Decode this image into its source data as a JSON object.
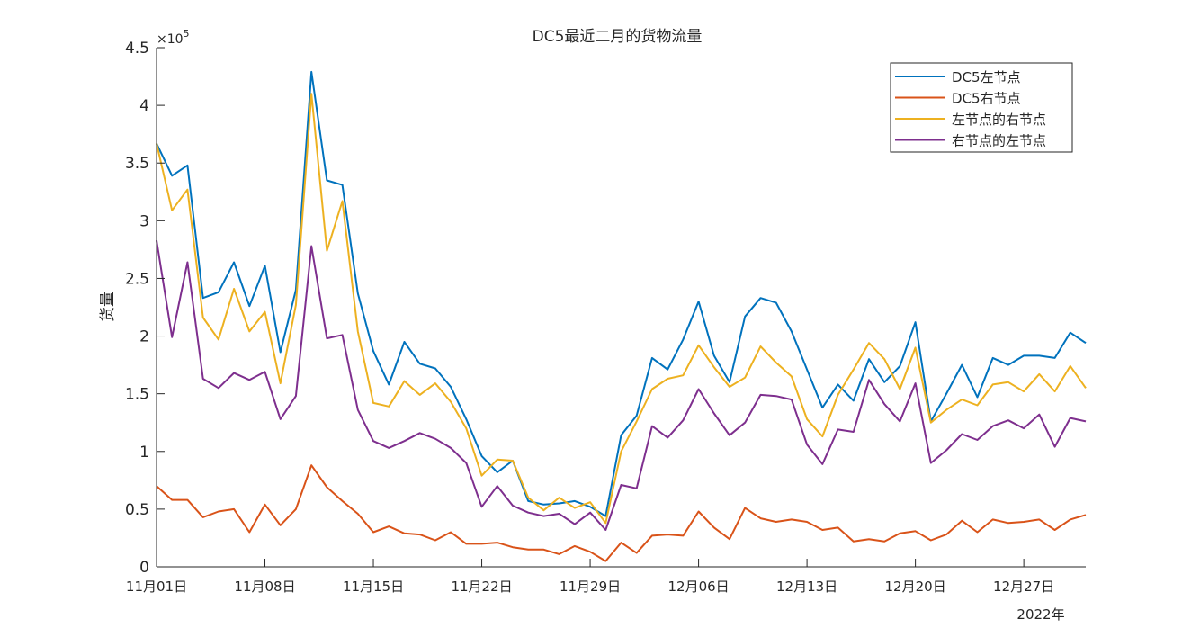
{
  "chart_data": {
    "type": "line",
    "title": "DC5最近二月的货物流量",
    "ylabel": "货量",
    "xlabel": "",
    "y_exponent_label": "×10",
    "y_exponent_power": "5",
    "x_secondary_label": "2022年",
    "ylim": [
      0,
      450000
    ],
    "yticks": [
      0,
      50000,
      100000,
      150000,
      200000,
      250000,
      300000,
      350000,
      400000,
      450000
    ],
    "ytick_labels": [
      "0",
      "0.5",
      "1",
      "1.5",
      "2",
      "2.5",
      "3",
      "3.5",
      "4",
      "4.5"
    ],
    "xlim": [
      "2022-11-01",
      "2022-12-31"
    ],
    "xticks": [
      "2022-11-01",
      "2022-11-08",
      "2022-11-15",
      "2022-11-22",
      "2022-11-29",
      "2022-12-06",
      "2022-12-13",
      "2022-12-20",
      "2022-12-27"
    ],
    "xtick_labels": [
      "11月01日",
      "11月08日",
      "11月15日",
      "11月22日",
      "11月29日",
      "12月06日",
      "12月13日",
      "12月20日",
      "12月27日"
    ],
    "x": [
      "2022-11-01",
      "2022-11-02",
      "2022-11-03",
      "2022-11-04",
      "2022-11-05",
      "2022-11-06",
      "2022-11-07",
      "2022-11-08",
      "2022-11-09",
      "2022-11-10",
      "2022-11-11",
      "2022-11-12",
      "2022-11-13",
      "2022-11-14",
      "2022-11-15",
      "2022-11-16",
      "2022-11-17",
      "2022-11-18",
      "2022-11-19",
      "2022-11-20",
      "2022-11-21",
      "2022-11-22",
      "2022-11-23",
      "2022-11-24",
      "2022-11-25",
      "2022-11-26",
      "2022-11-27",
      "2022-11-28",
      "2022-11-29",
      "2022-11-30",
      "2022-12-01",
      "2022-12-02",
      "2022-12-03",
      "2022-12-04",
      "2022-12-05",
      "2022-12-06",
      "2022-12-07",
      "2022-12-08",
      "2022-12-09",
      "2022-12-10",
      "2022-12-11",
      "2022-12-12",
      "2022-12-13",
      "2022-12-14",
      "2022-12-15",
      "2022-12-16",
      "2022-12-17",
      "2022-12-18",
      "2022-12-19",
      "2022-12-20",
      "2022-12-21",
      "2022-12-22",
      "2022-12-23",
      "2022-12-24",
      "2022-12-25",
      "2022-12-26",
      "2022-12-27",
      "2022-12-28",
      "2022-12-29",
      "2022-12-30",
      "2022-12-31"
    ],
    "grid": false,
    "legend_position": "top-right",
    "series": [
      {
        "name": "DC5左节点",
        "color": "#0072BD",
        "values": [
          367000,
          339000,
          348000,
          233000,
          238000,
          264000,
          226000,
          261000,
          186000,
          240000,
          429000,
          335000,
          331000,
          237000,
          187000,
          158000,
          195000,
          176000,
          172000,
          156000,
          128000,
          96000,
          82000,
          92000,
          57000,
          54000,
          55000,
          57000,
          52000,
          44000,
          114000,
          131000,
          181000,
          171000,
          197000,
          230000,
          183000,
          160000,
          217000,
          233000,
          229000,
          204000,
          171000,
          138000,
          158000,
          144000,
          180000,
          160000,
          174000,
          212000,
          126000,
          150000,
          175000,
          147000,
          181000,
          175000,
          183000,
          183000,
          181000,
          203000,
          194000
        ]
      },
      {
        "name": "DC5右节点",
        "color": "#D95319",
        "values": [
          70000,
          58000,
          58000,
          43000,
          48000,
          50000,
          30000,
          54000,
          36000,
          50000,
          88000,
          69000,
          57000,
          46000,
          30000,
          35000,
          29000,
          28000,
          23000,
          30000,
          20000,
          20000,
          21000,
          17000,
          15000,
          15000,
          11000,
          18000,
          13000,
          5000,
          21000,
          12000,
          27000,
          28000,
          27000,
          48000,
          34000,
          24000,
          51000,
          42000,
          39000,
          41000,
          39000,
          32000,
          34000,
          22000,
          24000,
          22000,
          29000,
          31000,
          23000,
          28000,
          40000,
          30000,
          41000,
          38000,
          39000,
          41000,
          32000,
          41000,
          45000
        ]
      },
      {
        "name": "左节点的右节点",
        "color": "#EDB120",
        "values": [
          367000,
          309000,
          327000,
          216000,
          197000,
          241000,
          204000,
          221000,
          159000,
          227000,
          410000,
          274000,
          317000,
          204000,
          142000,
          139000,
          161000,
          149000,
          159000,
          143000,
          120000,
          79000,
          93000,
          92000,
          60000,
          49000,
          60000,
          51000,
          56000,
          38000,
          100000,
          126000,
          154000,
          163000,
          166000,
          192000,
          173000,
          156000,
          164000,
          191000,
          177000,
          165000,
          128000,
          113000,
          149000,
          171000,
          194000,
          180000,
          154000,
          190000,
          125000,
          136000,
          145000,
          140000,
          158000,
          160000,
          152000,
          167000,
          152000,
          174000,
          155000
        ]
      },
      {
        "name": "右节点的左节点",
        "color": "#7E2F8E",
        "values": [
          283000,
          199000,
          264000,
          163000,
          155000,
          168000,
          162000,
          169000,
          128000,
          148000,
          278000,
          198000,
          201000,
          136000,
          109000,
          103000,
          109000,
          116000,
          111000,
          103000,
          90000,
          52000,
          70000,
          53000,
          47000,
          44000,
          46000,
          37000,
          47000,
          32000,
          71000,
          68000,
          122000,
          112000,
          127000,
          154000,
          133000,
          114000,
          125000,
          149000,
          148000,
          145000,
          106000,
          89000,
          119000,
          117000,
          162000,
          141000,
          126000,
          159000,
          90000,
          101000,
          115000,
          110000,
          122000,
          127000,
          120000,
          132000,
          104000,
          129000,
          126000
        ]
      }
    ]
  }
}
